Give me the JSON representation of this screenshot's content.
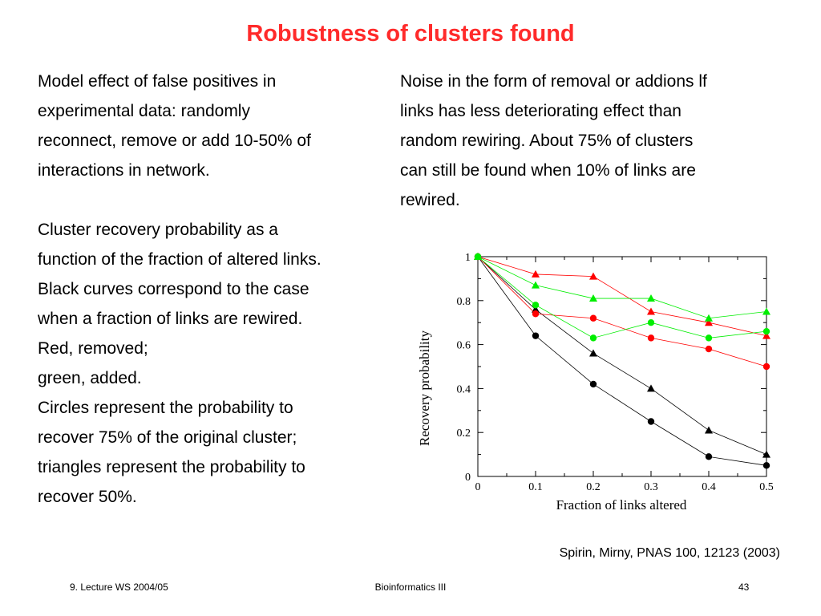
{
  "slide": {
    "title": "Robustness of clusters found",
    "left_lines": [
      "Model effect of false positives in",
      "experimental data: randomly",
      "reconnect, remove or add 10-50% of",
      "interactions in network.",
      "",
      "Cluster recovery probability as a",
      "function of the fraction of altered links.",
      "Black curves correspond to the case",
      "when a fraction of links are rewired.",
      "Red, removed;",
      "green, added.",
      "Circles represent the probability to",
      "recover 75% of the original cluster;",
      "triangles represent the probability to",
      "recover 50%."
    ],
    "right_lines": [
      "Noise in the form of removal or addions lf",
      "links has less deteriorating effect than",
      "random rewiring. About 75% of clusters",
      "can still be found when 10% of links are",
      "rewired."
    ],
    "citation": "Spirin, Mirny, PNAS 100, 12123 (2003)",
    "footer": {
      "left": "9. Lecture WS 2004/05",
      "center": "Bioinformatics III",
      "right": "43"
    }
  },
  "chart_data": {
    "type": "line",
    "title": "",
    "xlabel": "Fraction of links altered",
    "ylabel": "Recovery probability",
    "xlim": [
      0,
      0.5
    ],
    "ylim": [
      0,
      1
    ],
    "x_ticks": [
      0,
      0.1,
      0.2,
      0.3,
      0.4,
      0.5
    ],
    "x_tick_labels": [
      "0",
      "0.1",
      "0.2",
      "0.3",
      "0.4",
      "0.5"
    ],
    "y_ticks": [
      0,
      0.2,
      0.4,
      0.6,
      0.8,
      1
    ],
    "y_tick_labels": [
      "0",
      "0.2",
      "0.4",
      "0.6",
      "0.8",
      "1"
    ],
    "x": [
      0,
      0.1,
      0.2,
      0.3,
      0.4,
      0.5
    ],
    "series": [
      {
        "color": "#000000",
        "marker": "circle",
        "values": [
          1.0,
          0.64,
          0.42,
          0.25,
          0.09,
          0.05
        ]
      },
      {
        "color": "#000000",
        "marker": "triangle",
        "values": [
          1.0,
          0.76,
          0.56,
          0.4,
          0.21,
          0.1
        ]
      },
      {
        "color": "#ff0000",
        "marker": "circle",
        "values": [
          1.0,
          0.74,
          0.72,
          0.63,
          0.58,
          0.5
        ]
      },
      {
        "color": "#ff0000",
        "marker": "triangle",
        "values": [
          1.0,
          0.92,
          0.91,
          0.75,
          0.7,
          0.64
        ]
      },
      {
        "color": "#00ee00",
        "marker": "circle",
        "values": [
          1.0,
          0.78,
          0.63,
          0.7,
          0.63,
          0.66
        ]
      },
      {
        "color": "#00ee00",
        "marker": "triangle",
        "values": [
          1.0,
          0.87,
          0.81,
          0.81,
          0.72,
          0.75
        ]
      }
    ]
  }
}
